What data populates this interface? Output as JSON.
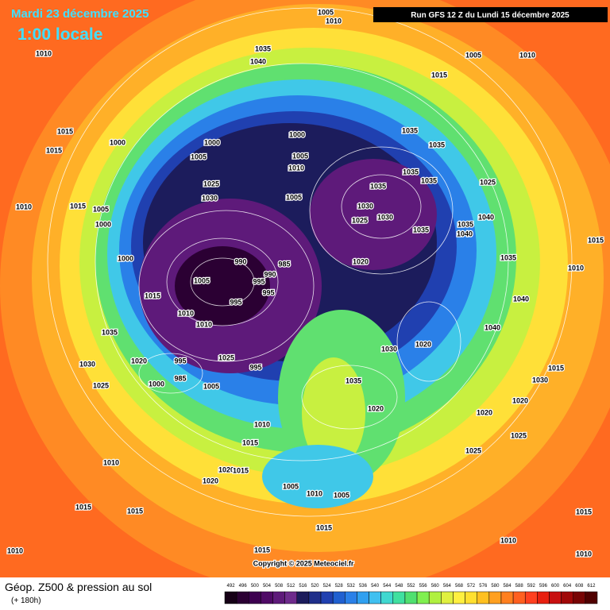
{
  "header": {
    "date": "Mardi 23 décembre 2025",
    "time": "1:00 locale",
    "run": "Run GFS 12 Z du Lundi 15 décembre 2025"
  },
  "footer": {
    "title": "Géop. Z500 & pression au sol",
    "subtitle": "(+ 180h)",
    "copyright": "Copyright © 2025 Meteociel.fr"
  },
  "colorbar": {
    "ticks": [
      492,
      496,
      500,
      504,
      508,
      512,
      516,
      520,
      524,
      528,
      532,
      536,
      540,
      544,
      548,
      552,
      556,
      560,
      564,
      568,
      572,
      576,
      580,
      584,
      588,
      592,
      596,
      600,
      604,
      608,
      612
    ],
    "colors": [
      "#160016",
      "#2b0033",
      "#3d0050",
      "#4f0a66",
      "#5e1a7a",
      "#6e2b8c",
      "#1c1c5c",
      "#1f2f8a",
      "#2040b0",
      "#2060d0",
      "#2a80e8",
      "#30a0f0",
      "#40c0f0",
      "#40d8d0",
      "#40e0a0",
      "#50e070",
      "#80f050",
      "#b0f040",
      "#e0f040",
      "#fff040",
      "#ffe030",
      "#ffc020",
      "#ffa020",
      "#ff8020",
      "#ff6020",
      "#ff4020",
      "#e82010",
      "#c81010",
      "#a00808",
      "#780404",
      "#500000"
    ]
  },
  "isobar_labels": [
    1005,
    1010,
    1035,
    1040,
    1010,
    1005,
    1010,
    1015,
    1015,
    1015,
    1000,
    1000,
    1000,
    1005,
    1005,
    1010,
    1035,
    1035,
    1025,
    1030,
    1005,
    1035,
    1030,
    1025,
    1030,
    1035,
    1035,
    1035,
    1025,
    1040,
    1035,
    1040,
    1015,
    1010,
    1010,
    1015,
    1005,
    1000,
    1000,
    990,
    985,
    990,
    1005,
    995,
    995,
    1015,
    995,
    1010,
    1010,
    1035,
    1020,
    1030,
    1020,
    1040,
    1040,
    1035,
    1030,
    1020,
    995,
    985,
    1000,
    1025,
    1005,
    1025,
    995,
    1035,
    1020,
    1010,
    1015,
    1020,
    1020,
    1025,
    1025,
    1015,
    1030,
    1020,
    1020,
    1015,
    1010,
    1005,
    1010,
    1005,
    1015,
    1015,
    1015,
    1015,
    1010,
    1010,
    1010,
    1015
  ]
}
